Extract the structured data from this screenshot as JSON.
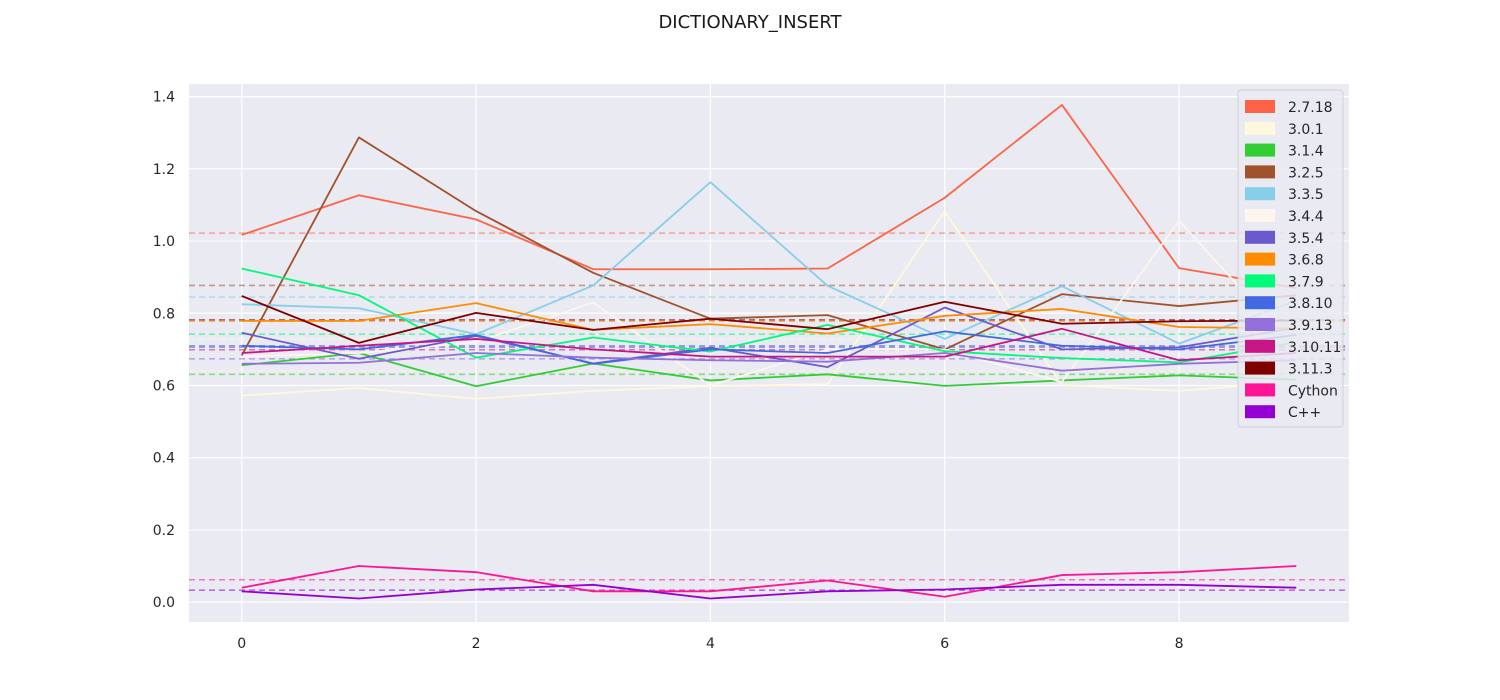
{
  "chart_data": {
    "type": "line",
    "title": "DICTIONARY_INSERT",
    "xlabel": "",
    "ylabel": "",
    "xlim": [
      -0.45,
      9.45
    ],
    "ylim": [
      -0.055,
      1.435
    ],
    "x": [
      0,
      1,
      2,
      3,
      4,
      5,
      6,
      7,
      8,
      9
    ],
    "xticks": [
      0,
      2,
      4,
      6,
      8
    ],
    "yticks": [
      0.0,
      0.2,
      0.4,
      0.6,
      0.8,
      1.0,
      1.2,
      1.4
    ],
    "grid": true,
    "legend_position": "top-right",
    "mean_lines": "dashed horizontal line per series at its mean",
    "series": [
      {
        "name": "2.7.18",
        "color": "#ff6347",
        "values": [
          1.017,
          1.127,
          1.06,
          0.922,
          0.922,
          0.924,
          1.12,
          1.377,
          0.925,
          0.87
        ],
        "mean": 1.022
      },
      {
        "name": "3.0.1",
        "color": "#fff8dc",
        "values": [
          0.572,
          0.593,
          0.563,
          0.585,
          0.598,
          0.604,
          1.083,
          0.601,
          0.585,
          0.61
        ],
        "mean": 0.64
      },
      {
        "name": "3.1.4",
        "color": "#32cd32",
        "values": [
          0.656,
          0.69,
          0.598,
          0.661,
          0.614,
          0.631,
          0.599,
          0.614,
          0.628,
          0.616
        ],
        "mean": 0.631
      },
      {
        "name": "3.2.5",
        "color": "#a0522d",
        "values": [
          0.683,
          1.287,
          1.083,
          0.912,
          0.785,
          0.795,
          0.7,
          0.853,
          0.82,
          0.85
        ],
        "mean": 0.877
      },
      {
        "name": "3.3.5",
        "color": "#87ceeb",
        "values": [
          0.825,
          0.814,
          0.742,
          0.877,
          1.163,
          0.876,
          0.729,
          0.875,
          0.716,
          0.835
        ],
        "mean": 0.845
      },
      {
        "name": "3.4.4",
        "color": "#fdf5ee",
        "values": [
          0.68,
          0.69,
          0.72,
          0.83,
          0.6,
          0.7,
          0.7,
          0.61,
          1.056,
          0.7
        ],
        "mean": 0.729
      },
      {
        "name": "3.5.4",
        "color": "#6a5acd",
        "values": [
          0.746,
          0.674,
          0.737,
          0.661,
          0.705,
          0.651,
          0.816,
          0.7,
          0.706,
          0.76
        ],
        "mean": 0.706
      },
      {
        "name": "3.6.8",
        "color": "#ff8c00",
        "values": [
          0.779,
          0.779,
          0.828,
          0.754,
          0.77,
          0.744,
          0.793,
          0.812,
          0.762,
          0.758
        ],
        "mean": 0.778
      },
      {
        "name": "3.7.9",
        "color": "#00fa7a",
        "values": [
          0.924,
          0.85,
          0.677,
          0.733,
          0.694,
          0.768,
          0.695,
          0.676,
          0.664,
          0.72
        ],
        "mean": 0.742
      },
      {
        "name": "3.8.10",
        "color": "#4169e1",
        "values": [
          0.71,
          0.7,
          0.74,
          0.66,
          0.7,
          0.69,
          0.75,
          0.71,
          0.7,
          0.74
        ],
        "mean": 0.71
      },
      {
        "name": "3.9.13",
        "color": "#9370db",
        "values": [
          0.66,
          0.663,
          0.69,
          0.677,
          0.67,
          0.666,
          0.69,
          0.641,
          0.66,
          0.67
        ],
        "mean": 0.674
      },
      {
        "name": "3.10.11",
        "color": "#c71585",
        "values": [
          0.69,
          0.71,
          0.729,
          0.7,
          0.68,
          0.68,
          0.68,
          0.757,
          0.67,
          0.69
        ],
        "mean": 0.699
      },
      {
        "name": "3.11.3",
        "color": "#800000",
        "values": [
          0.848,
          0.718,
          0.801,
          0.754,
          0.785,
          0.756,
          0.832,
          0.771,
          0.778,
          0.78
        ],
        "mean": 0.782
      },
      {
        "name": "Cython",
        "color": "#ff1493",
        "values": [
          0.04,
          0.1,
          0.083,
          0.03,
          0.03,
          0.06,
          0.015,
          0.075,
          0.083,
          0.1
        ],
        "mean": 0.062
      },
      {
        "name": "C++",
        "color": "#9400d3",
        "values": [
          0.03,
          0.01,
          0.035,
          0.048,
          0.01,
          0.03,
          0.035,
          0.048,
          0.048,
          0.04
        ],
        "mean": 0.033
      }
    ]
  },
  "colors": {
    "plot_background": "#eaeaf2",
    "grid": "#ffffff",
    "page_background": "#ffffff"
  }
}
